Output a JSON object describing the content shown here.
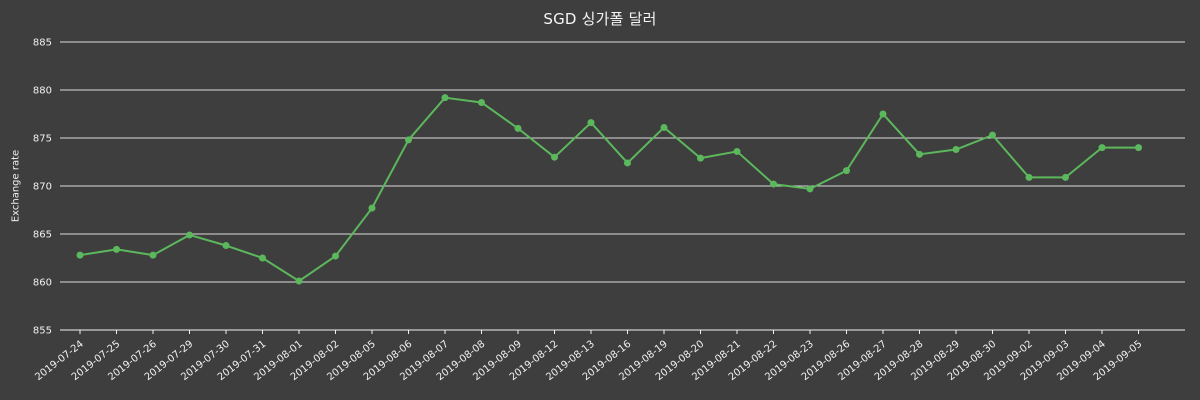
{
  "chart_data": {
    "type": "line",
    "title": "SGD 싱가폴 달러",
    "ylabel": "Exchange rate",
    "x": [
      "2019-07-24",
      "2019-07-25",
      "2019-07-26",
      "2019-07-29",
      "2019-07-30",
      "2019-07-31",
      "2019-08-01",
      "2019-08-02",
      "2019-08-05",
      "2019-08-06",
      "2019-08-07",
      "2019-08-08",
      "2019-08-09",
      "2019-08-12",
      "2019-08-13",
      "2019-08-16",
      "2019-08-19",
      "2019-08-20",
      "2019-08-21",
      "2019-08-22",
      "2019-08-23",
      "2019-08-26",
      "2019-08-27",
      "2019-08-28",
      "2019-08-29",
      "2019-08-30",
      "2019-09-02",
      "2019-09-03",
      "2019-09-04",
      "2019-09-05"
    ],
    "values": [
      862.8,
      863.4,
      862.8,
      864.9,
      863.8,
      862.5,
      860.1,
      862.7,
      867.7,
      874.8,
      879.2,
      878.7,
      876.0,
      873.0,
      876.6,
      872.4,
      876.1,
      872.9,
      873.6,
      870.2,
      869.7,
      871.6,
      877.5,
      873.3,
      873.8,
      875.3,
      870.9,
      870.9,
      874.0,
      874.0
    ],
    "ylim": [
      855,
      885
    ],
    "ytick_step": 5,
    "yticks": [
      855,
      860,
      865,
      870,
      875,
      880,
      885
    ],
    "grid": true,
    "legend": "none",
    "colors": {
      "line": "#5cb85c",
      "background": "#3e3e3e",
      "grid": "#d9d9d9",
      "text": "#f1f1f1",
      "axis": "#f1f1f1"
    }
  }
}
